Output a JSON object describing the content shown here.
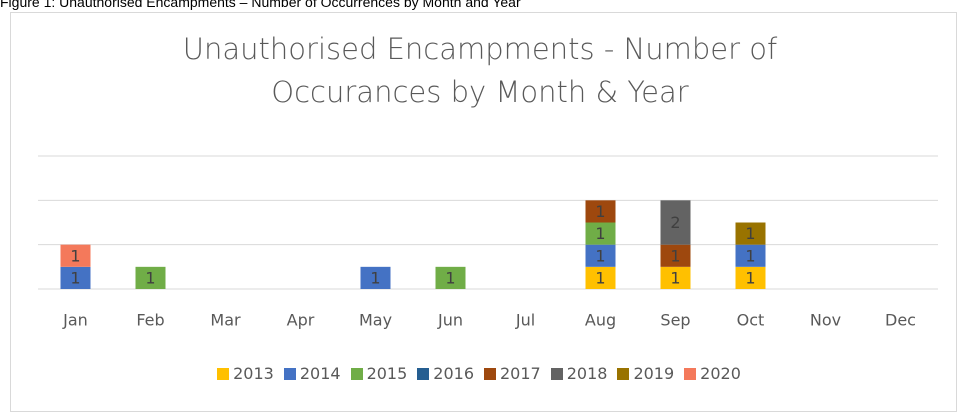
{
  "caption": "Figure 1: Unauthorised Encampments – Number of Occurrences by Month and Year",
  "chart_data": {
    "type": "stacked_bar",
    "title": "Unauthorised Encampments - Number of Occurances by Month & Year",
    "categories": [
      "Jan",
      "Feb",
      "Mar",
      "Apr",
      "May",
      "Jun",
      "Jul",
      "Aug",
      "Sep",
      "Oct",
      "Nov",
      "Dec"
    ],
    "series": [
      {
        "name": "2013",
        "color": "#ffc000",
        "values": [
          null,
          null,
          null,
          null,
          null,
          null,
          null,
          1,
          1,
          1,
          null,
          null
        ]
      },
      {
        "name": "2014",
        "color": "#4472c4",
        "values": [
          1,
          null,
          null,
          null,
          1,
          null,
          null,
          1,
          null,
          1,
          null,
          null
        ]
      },
      {
        "name": "2015",
        "color": "#70ad47",
        "values": [
          null,
          1,
          null,
          null,
          null,
          1,
          null,
          1,
          null,
          null,
          null,
          null
        ]
      },
      {
        "name": "2016",
        "color": "#255e91",
        "values": [
          null,
          null,
          null,
          null,
          null,
          null,
          null,
          null,
          null,
          null,
          null,
          null
        ]
      },
      {
        "name": "2017",
        "color": "#9e480e",
        "values": [
          null,
          null,
          null,
          null,
          null,
          null,
          null,
          1,
          1,
          null,
          null,
          null
        ]
      },
      {
        "name": "2018",
        "color": "#636363",
        "values": [
          null,
          null,
          null,
          null,
          null,
          null,
          null,
          null,
          2,
          null,
          null,
          null
        ]
      },
      {
        "name": "2019",
        "color": "#997300",
        "values": [
          null,
          null,
          null,
          null,
          null,
          null,
          null,
          null,
          null,
          1,
          null,
          null
        ]
      },
      {
        "name": "2020",
        "color": "#f4795b",
        "values": [
          1,
          null,
          null,
          null,
          null,
          null,
          null,
          null,
          null,
          null,
          null,
          null
        ]
      }
    ],
    "ylim": [
      0,
      6
    ],
    "yticks": [
      0,
      2,
      4,
      6
    ],
    "grid": true,
    "legend": "bottom"
  }
}
